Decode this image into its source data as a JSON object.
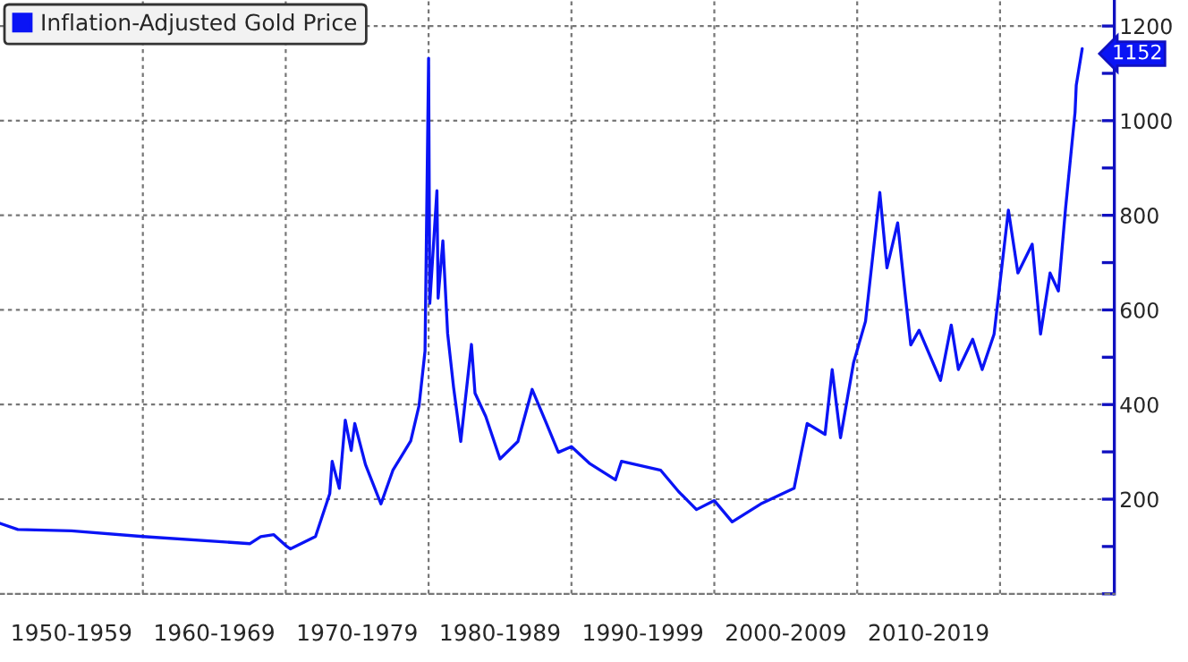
{
  "chart_data": {
    "type": "line",
    "x": [
      "1950-01",
      "1951-04",
      "1955-01",
      "1960-01",
      "1967-07",
      "1968-04",
      "1969-03",
      "1970-01",
      "1970-05",
      "1972-02",
      "1972-07",
      "1973-02",
      "1973-04",
      "1973-10",
      "1974-03",
      "1974-08",
      "1974-11",
      "1975-08",
      "1976-09",
      "1977-07",
      "1978-10",
      "1979-05",
      "1979-10",
      "1980-01",
      "1980-02",
      "1980-08",
      "1980-09",
      "1981-01",
      "1981-05",
      "1981-10",
      "1982-04",
      "1983-01",
      "1983-04",
      "1984-01",
      "1985-01",
      "1986-04",
      "1987-04",
      "1988-04",
      "1989-02",
      "1990-01",
      "1991-04",
      "1993-02",
      "1993-07",
      "1996-04",
      "1997-07",
      "1998-10",
      "2000-01",
      "2001-04",
      "2003-04",
      "2005-08",
      "2006-07",
      "2007-10",
      "2008-04",
      "2008-11",
      "2009-10",
      "2010-08",
      "2011-08",
      "2012-02",
      "2012-11",
      "2013-05",
      "2013-10",
      "2014-05",
      "2015-11",
      "2016-08",
      "2017-02",
      "2018-02",
      "2018-10",
      "2019-08",
      "2020-08",
      "2021-04",
      "2022-04",
      "2022-11",
      "2023-07",
      "2024-02",
      "2024-08",
      "2025-04",
      "2025-05",
      "2025-10"
    ],
    "series": [
      {
        "name": "Inflation-Adjusted Gold Price",
        "color": "#0a14f5",
        "values": [
          149,
          136,
          133,
          121,
          106,
          121,
          125,
          102,
          95,
          121,
          159,
          212,
          280,
          223,
          367,
          303,
          360,
          273,
          190,
          261,
          323,
          398,
          513,
          1132,
          614,
          852,
          625,
          746,
          550,
          436,
          322,
          527,
          424,
          375,
          285,
          322,
          432,
          360,
          299,
          311,
          276,
          241,
          280,
          261,
          216,
          178,
          197,
          152,
          190,
          223,
          360,
          337,
          474,
          330,
          489,
          576,
          848,
          689,
          784,
          640,
          526,
          557,
          451,
          568,
          474,
          538,
          474,
          549,
          811,
          678,
          739,
          549,
          678,
          640,
          814,
          1018,
          1075,
          1152
        ]
      }
    ],
    "xlim": [
      "1950",
      "2028"
    ],
    "xticks": [
      {
        "value": "1955",
        "label": "1950-1959"
      },
      {
        "value": "1960",
        "label": null
      },
      {
        "value": "1965",
        "label": "1960-1969"
      },
      {
        "value": "1970",
        "label": null
      },
      {
        "value": "1975",
        "label": "1970-1979"
      },
      {
        "value": "1980",
        "label": null
      },
      {
        "value": "1985",
        "label": "1980-1989"
      },
      {
        "value": "1990",
        "label": null
      },
      {
        "value": "1995",
        "label": "1990-1999"
      },
      {
        "value": "2000",
        "label": null
      },
      {
        "value": "2005",
        "label": "2000-2009"
      },
      {
        "value": "2010",
        "label": null
      },
      {
        "value": "2015",
        "label": "2010-2019"
      },
      {
        "value": "2020",
        "label": null
      }
    ],
    "ylim": [
      0,
      1255
    ],
    "yticks": [
      {
        "value": 0,
        "label": null
      },
      {
        "value": 100,
        "label": null
      },
      200,
      {
        "value": 300,
        "label": null
      },
      400,
      {
        "value": 500,
        "label": null
      },
      600,
      {
        "value": 700,
        "label": null
      },
      800,
      {
        "value": 900,
        "label": null
      },
      1000,
      {
        "value": 1100,
        "label": null
      },
      1200
    ],
    "annotations": [
      {
        "text": "1152",
        "x": "2025-10",
        "y": 1152
      }
    ],
    "grid": true,
    "legend": "top left",
    "marker": "none",
    "line_style": "solid"
  }
}
